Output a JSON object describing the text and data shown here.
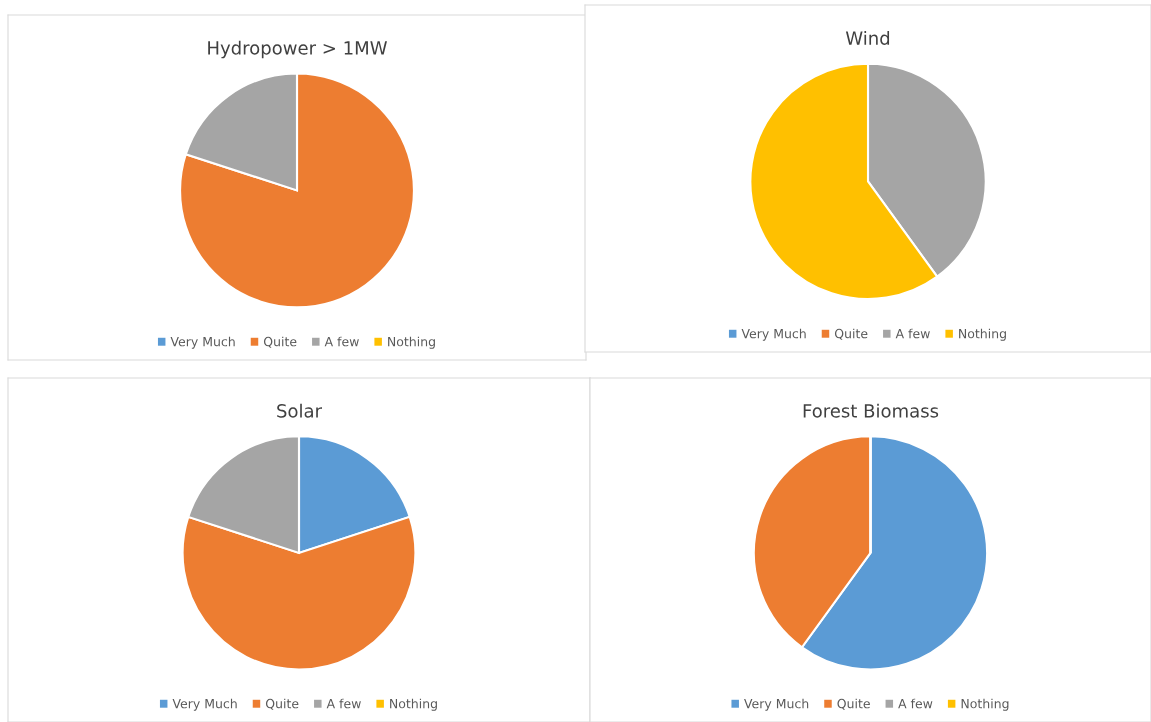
{
  "chart_data": [
    {
      "type": "pie",
      "title": "Hydropower > 1MW",
      "categories": [
        "Very Much",
        "Quite",
        "A few",
        "Nothing"
      ],
      "values": [
        0,
        80,
        20,
        0
      ],
      "colors": [
        "#5b9bd5",
        "#ed7d31",
        "#a5a5a5",
        "#ffc000"
      ],
      "legend": "bottom"
    },
    {
      "type": "pie",
      "title": "Wind",
      "categories": [
        "Very Much",
        "Quite",
        "A few",
        "Nothing"
      ],
      "values": [
        0,
        0,
        40,
        60
      ],
      "colors": [
        "#5b9bd5",
        "#ed7d31",
        "#a5a5a5",
        "#ffc000"
      ],
      "legend": "bottom"
    },
    {
      "type": "pie",
      "title": "Solar",
      "categories": [
        "Very Much",
        "Quite",
        "A few",
        "Nothing"
      ],
      "values": [
        20,
        60,
        20,
        0
      ],
      "colors": [
        "#5b9bd5",
        "#ed7d31",
        "#a5a5a5",
        "#ffc000"
      ],
      "legend": "bottom"
    },
    {
      "type": "pie",
      "title": "Forest Biomass",
      "categories": [
        "Very Much",
        "Quite",
        "A few",
        "Nothing"
      ],
      "values": [
        60,
        40,
        0,
        0
      ],
      "colors": [
        "#5b9bd5",
        "#ed7d31",
        "#a5a5a5",
        "#ffc000"
      ],
      "legend": "bottom"
    }
  ]
}
